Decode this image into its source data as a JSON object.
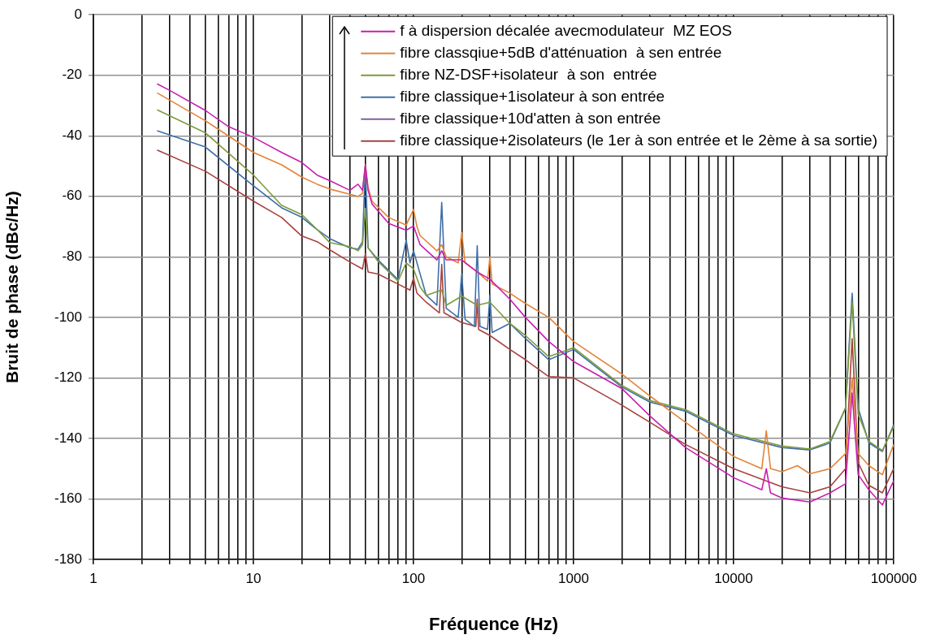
{
  "chart_data": {
    "type": "line",
    "xlabel": "Fréquence (Hz)",
    "ylabel": "Bruit de phase (dBc/Hz)",
    "log": "x",
    "grid": true,
    "legend": "top right",
    "xlim": [
      1,
      100000
    ],
    "ylim": [
      -180,
      0
    ],
    "xticks": [
      1,
      {
        "value": 2,
        "label": null
      },
      {
        "value": 3,
        "label": null
      },
      {
        "value": 4,
        "label": null
      },
      {
        "value": 5,
        "label": null
      },
      {
        "value": 6,
        "label": null
      },
      {
        "value": 7,
        "label": null
      },
      {
        "value": 8,
        "label": null
      },
      {
        "value": 9,
        "label": null
      },
      10,
      {
        "value": 20,
        "label": null
      },
      {
        "value": 30,
        "label": null
      },
      {
        "value": 40,
        "label": null
      },
      {
        "value": 50,
        "label": null
      },
      {
        "value": 60,
        "label": null
      },
      {
        "value": 70,
        "label": null
      },
      {
        "value": 80,
        "label": null
      },
      {
        "value": 90,
        "label": null
      },
      100,
      {
        "value": 200,
        "label": null
      },
      {
        "value": 300,
        "label": null
      },
      {
        "value": 400,
        "label": null
      },
      {
        "value": 500,
        "label": null
      },
      {
        "value": 600,
        "label": null
      },
      {
        "value": 700,
        "label": null
      },
      {
        "value": 800,
        "label": null
      },
      {
        "value": 900,
        "label": null
      },
      1000,
      {
        "value": 2000,
        "label": null
      },
      {
        "value": 3000,
        "label": null
      },
      {
        "value": 4000,
        "label": null
      },
      {
        "value": 5000,
        "label": null
      },
      {
        "value": 6000,
        "label": null
      },
      {
        "value": 7000,
        "label": null
      },
      {
        "value": 8000,
        "label": null
      },
      {
        "value": 9000,
        "label": null
      },
      10000,
      {
        "value": 20000,
        "label": null
      },
      {
        "value": 30000,
        "label": null
      },
      {
        "value": 40000,
        "label": null
      },
      {
        "value": 50000,
        "label": null
      },
      {
        "value": 60000,
        "label": null
      },
      {
        "value": 70000,
        "label": null
      },
      {
        "value": 80000,
        "label": null
      },
      {
        "value": 90000,
        "label": null
      },
      100000
    ],
    "yticks": [
      -180,
      -160,
      -140,
      -120,
      -100,
      -80,
      -60,
      -40,
      -20,
      0
    ],
    "series": [
      {
        "name": "f à dispersion décalée avecmodulateur  MZ EOS",
        "color": "#c81fb0",
        "x": [
          2.5,
          3,
          5,
          7,
          10,
          15,
          20,
          25,
          30,
          40,
          45,
          48,
          50,
          52,
          55,
          70,
          90,
          100,
          110,
          140,
          150,
          160,
          200,
          250,
          300,
          400,
          500,
          700,
          1000,
          2000,
          3000,
          5000,
          10000,
          15000,
          16000,
          17000,
          20000,
          30000,
          40000,
          50000,
          55000,
          60000,
          70000,
          85000,
          100000
        ],
        "values": [
          -22.8,
          -25,
          -31.6,
          -37,
          -40.5,
          -45.5,
          -48.8,
          -53,
          -54.8,
          -58,
          -56,
          -58,
          -49.6,
          -58,
          -62.5,
          -69,
          -71.2,
          -69.8,
          -76,
          -81,
          -78,
          -81,
          -81,
          -85,
          -87.4,
          -94,
          -100,
          -108,
          -114.6,
          -123.5,
          -132.6,
          -143,
          -153,
          -157,
          -150,
          -158,
          -159.7,
          -161,
          -158,
          -155,
          -125,
          -152,
          -157,
          -162,
          -154
        ]
      },
      {
        "name": "fibre classqiue+5dB d'atténuation  à sen entrée",
        "color": "#e3843a",
        "x": [
          2.5,
          5,
          10,
          15,
          20,
          25,
          30,
          40,
          45,
          48,
          50,
          52,
          55,
          70,
          90,
          100,
          105,
          110,
          140,
          150,
          160,
          190,
          200,
          210,
          250,
          290,
          300,
          310,
          400,
          500,
          700,
          1000,
          2000,
          3000,
          5000,
          10000,
          15000,
          16000,
          17000,
          20000,
          25000,
          30000,
          40000,
          50000,
          55000,
          60000,
          70000,
          85000,
          100000
        ],
        "values": [
          -25.8,
          -35,
          -45.5,
          -49.6,
          -53.6,
          -56,
          -57.6,
          -59.3,
          -60,
          -59,
          -49.6,
          -57,
          -61.6,
          -67,
          -69.5,
          -64.3,
          -70,
          -73,
          -78,
          -76,
          -80,
          -82,
          -72,
          -82,
          -85,
          -88,
          -80,
          -89,
          -92,
          -95.4,
          -100,
          -108,
          -118.7,
          -126,
          -134.7,
          -146,
          -150,
          -137.5,
          -150,
          -151,
          -149,
          -151.7,
          -150,
          -145,
          -120,
          -145,
          -149,
          -152,
          -142
        ]
      },
      {
        "name": "fibre NZ-DSF+isolateur  à son  entrée",
        "color": "#7f9a3c",
        "x": [
          2.5,
          5,
          10,
          15,
          20,
          25,
          30,
          40,
          45,
          48,
          50,
          52,
          60,
          80,
          90,
          100,
          110,
          120,
          150,
          160,
          200,
          250,
          300,
          400,
          500,
          700,
          1000,
          2000,
          3000,
          5000,
          10000,
          20000,
          30000,
          40000,
          50000,
          55000,
          60000,
          70000,
          85000,
          100000
        ],
        "values": [
          -31.4,
          -39,
          -53,
          -63,
          -66,
          -71,
          -75.3,
          -76.6,
          -78,
          -76,
          -64,
          -77,
          -81.5,
          -88,
          -82,
          -84,
          -90,
          -92.7,
          -91,
          -96,
          -93,
          -96,
          -95,
          -102,
          -106,
          -113,
          -110,
          -122.5,
          -127.5,
          -130.5,
          -138.5,
          -142.5,
          -143.5,
          -141,
          -130,
          -95,
          -132,
          -141,
          -144,
          -136
        ]
      },
      {
        "name": "fibre classique+1isolateur à son entrée",
        "color": "#3f6fa8",
        "x": [
          2.5,
          5,
          10,
          15,
          20,
          25,
          30,
          40,
          45,
          48,
          50,
          52,
          60,
          80,
          90,
          95,
          100,
          120,
          140,
          150,
          160,
          190,
          200,
          210,
          240,
          250,
          260,
          290,
          300,
          310,
          400,
          500,
          700,
          1000,
          2000,
          3000,
          5000,
          10000,
          20000,
          30000,
          40000,
          50000,
          55000,
          60000,
          70000,
          85000,
          100000
        ],
        "values": [
          -38.3,
          -43.7,
          -56.5,
          -63.8,
          -66.9,
          -71,
          -74,
          -77,
          -77.5,
          -75,
          -50,
          -77,
          -81,
          -87.5,
          -74.5,
          -82,
          -78,
          -92.7,
          -96,
          -62,
          -97,
          -100,
          -85.7,
          -100.7,
          -103,
          -76.3,
          -103,
          -104,
          -92.7,
          -105,
          -102,
          -107,
          -114,
          -110.6,
          -123,
          -128,
          -131,
          -139,
          -143,
          -143.8,
          -141.5,
          -130,
          -92,
          -130,
          -141.5,
          -144.3,
          -135.5
        ]
      },
      {
        "name": "fibre classique+10d'atten à son entrée",
        "color": "#7d60a0"
      },
      {
        "name": "fibre classique+2isolateurs (le 1er à son entrée et le 2ème à sa sortie)",
        "color": "#a8423f",
        "x": [
          2.5,
          5,
          10,
          15,
          20,
          25,
          30,
          40,
          48,
          50,
          52,
          60,
          80,
          95,
          100,
          105,
          120,
          145,
          150,
          155,
          200,
          245,
          250,
          255,
          300,
          400,
          500,
          700,
          1000,
          2000,
          3000,
          5000,
          10000,
          20000,
          30000,
          40000,
          50000,
          55000,
          60000,
          70000,
          85000,
          100000
        ],
        "values": [
          -44.7,
          -51.7,
          -61.6,
          -67,
          -73.1,
          -75,
          -77.7,
          -81.7,
          -84,
          -79,
          -85,
          -85.7,
          -89,
          -91,
          -87,
          -92,
          -95,
          -98.5,
          -82.5,
          -98.5,
          -101.7,
          -103,
          -94,
          -104,
          -106,
          -110.6,
          -114,
          -119.6,
          -120,
          -129,
          -134.7,
          -142,
          -150,
          -156,
          -158,
          -156,
          -150,
          -107,
          -148,
          -155.5,
          -158,
          -150
        ]
      }
    ]
  }
}
